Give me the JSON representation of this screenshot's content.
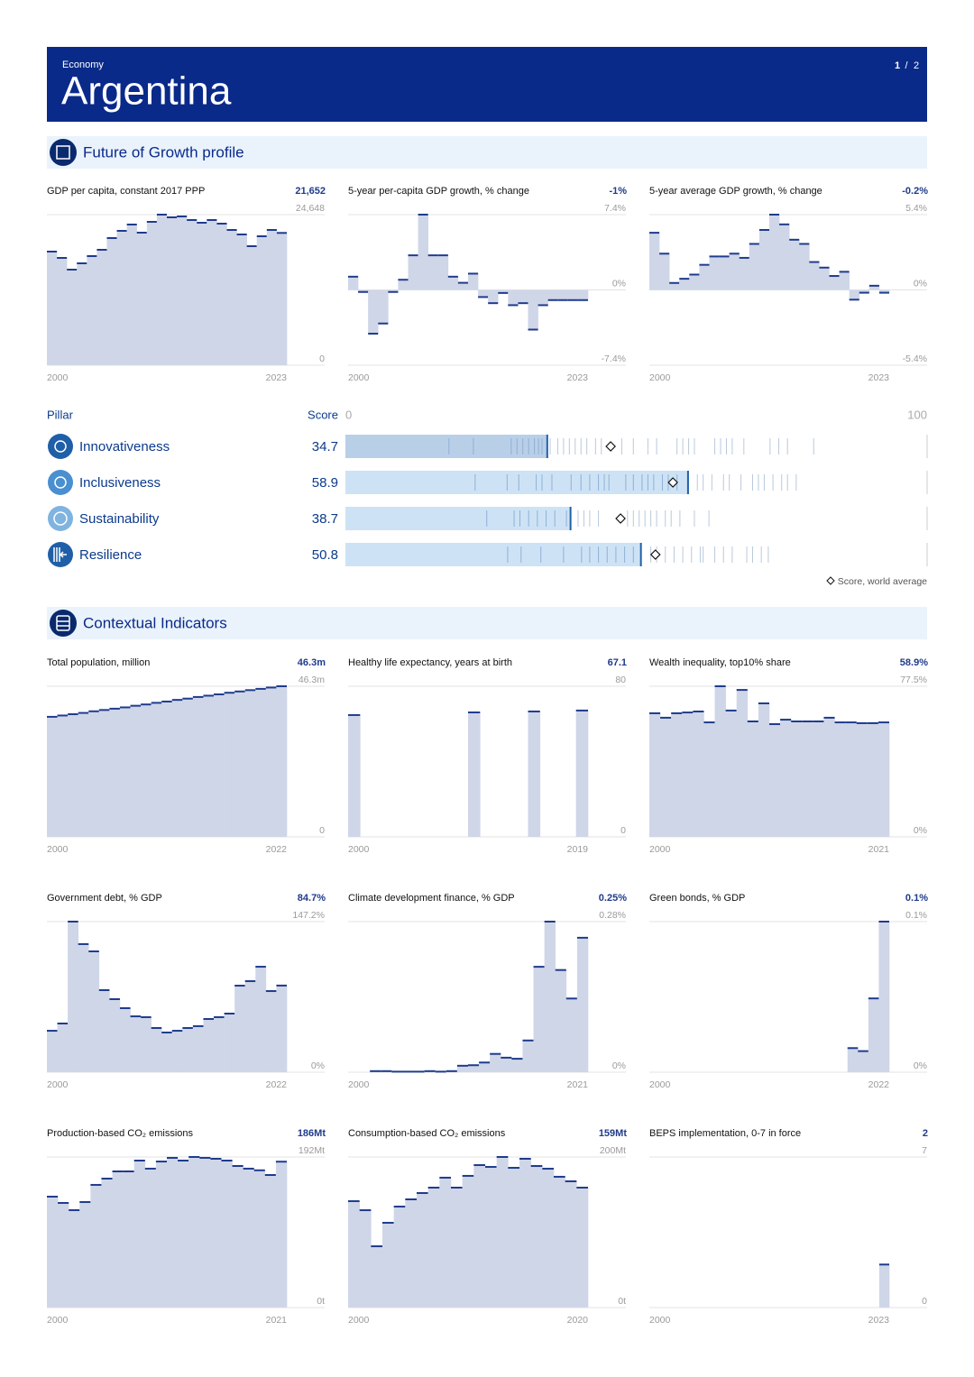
{
  "header": {
    "category": "Economy",
    "title": "Argentina",
    "pagination": {
      "current": "1",
      "separator": "/",
      "total": "2"
    }
  },
  "sections": {
    "growth": "Future of Growth profile",
    "context": "Contextual Indicators"
  },
  "pillars": {
    "header": {
      "pillar": "Pillar",
      "score": "Score"
    },
    "xlim": [
      0,
      100
    ],
    "xticks": [
      0,
      100
    ],
    "legend": "Score, world average",
    "rows": [
      {
        "name": "Innovativeness",
        "score": 34.7,
        "world_average": 45.6,
        "economies": [
          17.8,
          22,
          28.5,
          29.5,
          30.5,
          31.5,
          32.5,
          33.2,
          33.8,
          35.2,
          36.5,
          37.5,
          38.5,
          39.5,
          40.5,
          41.5,
          43,
          44,
          47.5,
          49.5,
          52,
          53.5,
          57,
          58,
          59,
          60,
          63.5,
          64.5,
          65.5,
          66.5,
          68.5,
          73,
          74.5,
          76,
          80.5
        ]
      },
      {
        "name": "Inclusiveness",
        "score": 58.9,
        "world_average": 56.3,
        "economies": [
          22.3,
          27.8,
          29.8,
          32.8,
          33.8,
          35.5,
          38.8,
          40.5,
          42,
          43.5,
          44.5,
          45.3,
          48.2,
          49.5,
          51,
          52,
          53,
          54.5,
          55.5,
          57,
          60.5,
          61.5,
          63,
          65,
          66,
          68,
          70,
          71,
          72,
          73.5,
          75,
          76,
          77.5
        ]
      },
      {
        "name": "Sustainability",
        "score": 38.7,
        "world_average": 47.3,
        "economies": [
          24.3,
          29,
          30,
          31.5,
          33,
          34.5,
          36,
          38,
          40,
          41,
          42,
          43.5,
          48.5,
          49.5,
          50.5,
          51.5,
          52.5,
          53.5,
          55,
          56,
          57.5,
          60,
          62.5
        ]
      },
      {
        "name": "Resilience",
        "score": 50.8,
        "world_average": 53.3,
        "economies": [
          27.9,
          30.2,
          33.6,
          37.5,
          40.6,
          42,
          43.5,
          45,
          46.5,
          48,
          49.5,
          52.5,
          53.5,
          55,
          56.5,
          58,
          59.5,
          61,
          61.5,
          63.5,
          65,
          66.5,
          69,
          70,
          71.5,
          72.7
        ]
      }
    ]
  },
  "chart_data": [
    {
      "type": "step",
      "title": "GDP per capita, constant 2017 PPP",
      "headline": "21,652",
      "color": "#1f3b8c",
      "fill": "#cfd6e8",
      "x": [
        2000,
        2001,
        2002,
        2003,
        2004,
        2005,
        2006,
        2007,
        2008,
        2009,
        2010,
        2011,
        2012,
        2013,
        2014,
        2015,
        2016,
        2017,
        2018,
        2019,
        2020,
        2021,
        2022,
        2023
      ],
      "values": [
        18597,
        17564,
        15645,
        16678,
        17859,
        18892,
        20811,
        21991,
        23024,
        21696,
        23467,
        24648,
        24205,
        24353,
        23763,
        23320,
        23763,
        23172,
        22139,
        21401,
        19482,
        21106,
        22139,
        21652
      ],
      "xlim": [
        2000,
        2023
      ],
      "xticks": [
        2000,
        2023
      ],
      "ylim": [
        0,
        24648
      ],
      "yticks": [
        0,
        {
          "value": 24648,
          "label": "24,648"
        }
      ]
    },
    {
      "type": "step",
      "title": "5-year per-capita GDP growth, % change",
      "headline": "-1%",
      "color": "#1f3b8c",
      "fill": "#cfd6e8",
      "x": [
        2000,
        2001,
        2002,
        2003,
        2004,
        2005,
        2006,
        2007,
        2008,
        2009,
        2010,
        2011,
        2012,
        2013,
        2014,
        2015,
        2016,
        2017,
        2018,
        2019,
        2020,
        2021,
        2022,
        2023
      ],
      "values": [
        1.3,
        -0.2,
        -4.3,
        -3.3,
        -0.2,
        1.0,
        3.4,
        7.4,
        3.4,
        3.4,
        1.3,
        0.7,
        1.6,
        -0.7,
        -1.3,
        -0.3,
        -1.5,
        -1.3,
        -3.9,
        -1.5,
        -1.0,
        -1.0,
        -1.0,
        -1
      ],
      "xlim": [
        2000,
        2023
      ],
      "xticks": [
        2000,
        2023
      ],
      "ylim": [
        -7.4,
        7.4
      ],
      "yticks": [
        {
          "value": -7.4,
          "label": "-7.4%"
        },
        {
          "value": 0,
          "label": "0%"
        },
        {
          "value": 7.4,
          "label": "7.4%"
        }
      ]
    },
    {
      "type": "step",
      "title": "5-year average GDP growth, % change",
      "headline": "-0.2%",
      "color": "#1f3b8c",
      "fill": "#cfd6e8",
      "x": [
        2000,
        2001,
        2002,
        2003,
        2004,
        2005,
        2006,
        2007,
        2008,
        2009,
        2010,
        2011,
        2012,
        2013,
        2014,
        2015,
        2016,
        2017,
        2018,
        2019,
        2020,
        2021,
        2022,
        2023
      ],
      "values": [
        4.1,
        2.6,
        0.5,
        0.8,
        1.1,
        1.8,
        2.4,
        2.4,
        2.6,
        2.3,
        3.3,
        4.3,
        5.4,
        4.7,
        3.6,
        3.3,
        2.0,
        1.6,
        1.0,
        1.3,
        -0.7,
        -0.2,
        0.3,
        -0.2
      ],
      "xlim": [
        2000,
        2023
      ],
      "xticks": [
        2000,
        2023
      ],
      "ylim": [
        -5.4,
        5.4
      ],
      "yticks": [
        {
          "value": -5.4,
          "label": "-5.4%"
        },
        {
          "value": 0,
          "label": "0%"
        },
        {
          "value": 5.4,
          "label": "5.4%"
        }
      ]
    },
    {
      "type": "step",
      "title": "Total population, million",
      "headline": "46.3m",
      "color": "#1f3b8c",
      "fill": "#cfd6e8",
      "x": [
        2000,
        2001,
        2002,
        2003,
        2004,
        2005,
        2006,
        2007,
        2008,
        2009,
        2010,
        2011,
        2012,
        2013,
        2014,
        2015,
        2016,
        2017,
        2018,
        2019,
        2020,
        2021,
        2022
      ],
      "values": [
        36.9,
        37.3,
        37.7,
        38.1,
        38.6,
        39.0,
        39.4,
        39.8,
        40.3,
        40.7,
        41.2,
        41.6,
        42.1,
        42.5,
        43.0,
        43.4,
        43.8,
        44.3,
        44.7,
        45.1,
        45.5,
        45.9,
        46.3
      ],
      "xlim": [
        2000,
        2022
      ],
      "xticks": [
        2000,
        2022
      ],
      "ylim": [
        0,
        46.3
      ],
      "yticks": [
        0,
        {
          "value": 46.3,
          "label": "46.3m"
        }
      ]
    },
    {
      "type": "step",
      "title": "Healthy life expectancy, years at birth",
      "headline": "67.1",
      "color": "#1f3b8c",
      "fill": "#cfd6e8",
      "x": [
        2000,
        2001,
        2002,
        2003,
        2004,
        2005,
        2006,
        2007,
        2008,
        2009,
        2010,
        2011,
        2012,
        2013,
        2014,
        2015,
        2016,
        2017,
        2018,
        2019
      ],
      "values": [
        64.7,
        null,
        null,
        null,
        null,
        null,
        null,
        null,
        null,
        null,
        66.1,
        null,
        null,
        null,
        null,
        66.6,
        null,
        null,
        null,
        67.1
      ],
      "xlim": [
        2000,
        2019
      ],
      "xticks": [
        2000,
        2019
      ],
      "ylim": [
        0,
        80
      ],
      "yticks": [
        0,
        80
      ]
    },
    {
      "type": "step",
      "title": "Wealth inequality, top10% share",
      "headline": "58.9%",
      "color": "#1f3b8c",
      "fill": "#cfd6e8",
      "x": [
        2000,
        2001,
        2002,
        2003,
        2004,
        2005,
        2006,
        2007,
        2008,
        2009,
        2010,
        2011,
        2012,
        2013,
        2014,
        2015,
        2016,
        2017,
        2018,
        2019,
        2020,
        2021
      ],
      "values": [
        63.6,
        61.3,
        63.6,
        64.0,
        64.5,
        58.9,
        77.5,
        65.0,
        75.6,
        59.4,
        68.7,
        58.0,
        60.3,
        59.4,
        59.4,
        59.4,
        61.3,
        58.9,
        58.9,
        58.5,
        58.5,
        58.9
      ],
      "xlim": [
        2000,
        2021
      ],
      "xticks": [
        2000,
        2021
      ],
      "ylim": [
        0,
        77.5
      ],
      "yticks": [
        {
          "value": 0,
          "label": "0%"
        },
        {
          "value": 77.5,
          "label": "77.5%"
        }
      ]
    },
    {
      "type": "step",
      "title": "Government debt, % GDP",
      "headline": "84.7%",
      "color": "#1f3b8c",
      "fill": "#cfd6e8",
      "x": [
        2000,
        2001,
        2002,
        2003,
        2004,
        2005,
        2006,
        2007,
        2008,
        2009,
        2010,
        2011,
        2012,
        2013,
        2014,
        2015,
        2016,
        2017,
        2018,
        2019,
        2020,
        2021,
        2022
      ],
      "values": [
        40.5,
        47.6,
        147.2,
        125.2,
        118.1,
        80.2,
        71.4,
        62.6,
        54.6,
        53.8,
        43.2,
        38.8,
        40.5,
        43.2,
        45.0,
        52.0,
        53.8,
        57.3,
        84.6,
        89.0,
        103.1,
        79.3,
        84.7
      ],
      "xlim": [
        2000,
        2022
      ],
      "xticks": [
        2000,
        2022
      ],
      "ylim": [
        0,
        147.2
      ],
      "yticks": [
        {
          "value": 0,
          "label": "0%"
        },
        {
          "value": 147.2,
          "label": "147.2%"
        }
      ]
    },
    {
      "type": "step",
      "title": "Climate development finance, % GDP",
      "headline": "0.25%",
      "color": "#1f3b8c",
      "fill": "#cfd6e8",
      "x": [
        2000,
        2001,
        2002,
        2003,
        2004,
        2005,
        2006,
        2007,
        2008,
        2009,
        2010,
        2011,
        2012,
        2013,
        2014,
        2015,
        2016,
        2017,
        2018,
        2019,
        2020,
        2021
      ],
      "values": [
        null,
        null,
        0.002,
        0.002,
        0.001,
        0.001,
        0.001,
        0.002,
        0.001,
        0.002,
        0.012,
        0.013,
        0.018,
        0.034,
        0.027,
        0.025,
        0.059,
        0.196,
        0.28,
        0.19,
        0.137,
        0.25
      ],
      "xlim": [
        2000,
        2021
      ],
      "xticks": [
        2000,
        2021
      ],
      "ylim": [
        0,
        0.28
      ],
      "yticks": [
        {
          "value": 0,
          "label": "0%"
        },
        {
          "value": 0.28,
          "label": "0.28%"
        }
      ]
    },
    {
      "type": "step",
      "title": "Green bonds, % GDP",
      "headline": "0.1%",
      "color": "#1f3b8c",
      "fill": "#cfd6e8",
      "x": [
        2000,
        2001,
        2002,
        2003,
        2004,
        2005,
        2006,
        2007,
        2008,
        2009,
        2010,
        2011,
        2012,
        2013,
        2014,
        2015,
        2016,
        2017,
        2018,
        2019,
        2020,
        2021,
        2022
      ],
      "values": [
        null,
        null,
        null,
        null,
        null,
        null,
        null,
        null,
        null,
        null,
        null,
        null,
        null,
        null,
        null,
        null,
        null,
        null,
        null,
        0.016,
        0.014,
        0.049,
        0.1
      ],
      "xlim": [
        2000,
        2022
      ],
      "xticks": [
        2000,
        2022
      ],
      "ylim": [
        0,
        0.1
      ],
      "yticks": [
        {
          "value": 0,
          "label": "0%"
        },
        {
          "value": 0.1,
          "label": "0.1%"
        }
      ]
    },
    {
      "type": "step",
      "title": "Production-based CO₂ emissions",
      "headline": "186Mt",
      "color": "#1f3b8c",
      "fill": "#cfd6e8",
      "x": [
        2000,
        2001,
        2002,
        2003,
        2004,
        2005,
        2006,
        2007,
        2008,
        2009,
        2010,
        2011,
        2012,
        2013,
        2014,
        2015,
        2016,
        2017,
        2018,
        2019,
        2020,
        2021
      ],
      "values": [
        141.4,
        133.4,
        124.2,
        134.5,
        156.4,
        164.4,
        173.6,
        173.6,
        187.4,
        177.1,
        186.2,
        190.9,
        187.4,
        192,
        190.9,
        189.7,
        187.4,
        180.5,
        177.1,
        175,
        169,
        186
      ],
      "xlim": [
        2000,
        2021
      ],
      "xticks": [
        2000,
        2021
      ],
      "ylim": [
        0,
        192
      ],
      "yticks": [
        {
          "value": 0,
          "label": "0t"
        },
        {
          "value": 192,
          "label": "192Mt"
        }
      ]
    },
    {
      "type": "step",
      "title": "Consumption-based CO₂ emissions",
      "headline": "159Mt",
      "color": "#1f3b8c",
      "fill": "#cfd6e8",
      "x": [
        2000,
        2001,
        2002,
        2003,
        2004,
        2005,
        2006,
        2007,
        2008,
        2009,
        2010,
        2011,
        2012,
        2013,
        2014,
        2015,
        2016,
        2017,
        2018,
        2019,
        2020
      ],
      "values": [
        141.3,
        129.3,
        81.4,
        112.6,
        134.1,
        143.7,
        152.1,
        159.3,
        172.5,
        159.3,
        174.9,
        189.2,
        186.8,
        200,
        185.6,
        197.6,
        188,
        184.4,
        173.7,
        167.7,
        159.3
      ],
      "xlim": [
        2000,
        2020
      ],
      "xticks": [
        2000,
        2020
      ],
      "ylim": [
        0,
        200
      ],
      "yticks": [
        {
          "value": 0,
          "label": "0t"
        },
        {
          "value": 200,
          "label": "200Mt"
        }
      ]
    },
    {
      "type": "step",
      "title": "BEPS implementation, 0-7 in force",
      "headline": "2",
      "color": "#1f3b8c",
      "fill": "#cfd6e8",
      "x": [
        2000,
        2001,
        2002,
        2003,
        2004,
        2005,
        2006,
        2007,
        2008,
        2009,
        2010,
        2011,
        2012,
        2013,
        2014,
        2015,
        2016,
        2017,
        2018,
        2019,
        2020,
        2021,
        2022,
        2023
      ],
      "values": [
        null,
        null,
        null,
        null,
        null,
        null,
        null,
        null,
        null,
        null,
        null,
        null,
        null,
        null,
        null,
        null,
        null,
        null,
        null,
        null,
        null,
        null,
        null,
        2
      ],
      "xlim": [
        2000,
        2023
      ],
      "xticks": [
        2000,
        2023
      ],
      "ylim": [
        0,
        7
      ],
      "yticks": [
        0,
        7
      ]
    }
  ]
}
